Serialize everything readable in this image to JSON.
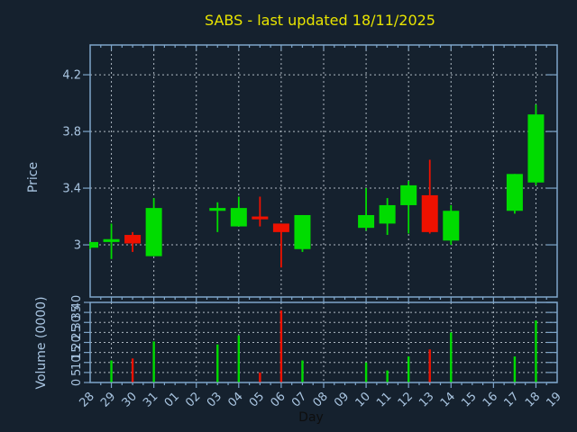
{
  "title": {
    "text": "SABS - last updated 18/11/2025"
  },
  "axes": {
    "price_label": "Price",
    "volume_label": "Volume (0000)",
    "day_label": "Day"
  },
  "colors": {
    "background": "#15212e",
    "title": "#e8e400",
    "tick_label": "#a9c5e1",
    "axis_label": "#a9c5e1",
    "day_axis_label": "#0e0e0e",
    "spine": "#7ea6ca",
    "gridline": "#c9d3dc",
    "candle_up": "#00dc00",
    "candle_down": "#ee1100"
  },
  "chart_data": {
    "type": "candlestick",
    "title": "SABS - last updated 18/11/2025",
    "xlabel": "Day",
    "ylabel_price": "Price",
    "ylabel_volume": "Volume (0000)",
    "grid": "dashed, every other day vertically; at labeled ticks horizontally",
    "x_categories": [
      "28",
      "29",
      "30",
      "31",
      "01",
      "02",
      "03",
      "04",
      "05",
      "06",
      "07",
      "08",
      "09",
      "10",
      "11",
      "12",
      "13",
      "14",
      "15",
      "16",
      "17",
      "18",
      "19"
    ],
    "x_gridlines": [
      "29",
      "31",
      "02",
      "04",
      "06",
      "08",
      "10",
      "12",
      "14",
      "16",
      "18"
    ],
    "price_axis": {
      "range": [
        2.632,
        4.41
      ],
      "ticks": [
        {
          "value": 3.0,
          "label": "3"
        },
        {
          "value": 3.4,
          "label": "3.4"
        },
        {
          "value": 3.8,
          "label": "3.8"
        },
        {
          "value": 4.2,
          "label": "4.2"
        }
      ]
    },
    "volume_axis": {
      "range": [
        0,
        40
      ],
      "ticks": [
        0,
        5,
        10,
        15,
        20,
        25,
        30,
        35,
        40
      ]
    },
    "candles": [
      {
        "day": "28",
        "open": 2.98,
        "high": 3.02,
        "low": 2.97,
        "close": 3.02,
        "volume": 0
      },
      {
        "day": "29",
        "open": 3.02,
        "high": 3.15,
        "low": 2.9,
        "close": 3.04,
        "volume": 11
      },
      {
        "day": "30",
        "open": 3.07,
        "high": 3.09,
        "low": 2.95,
        "close": 3.01,
        "volume": 12
      },
      {
        "day": "31",
        "open": 2.92,
        "high": 3.33,
        "low": 2.92,
        "close": 3.26,
        "volume": 20.5
      },
      {
        "day": "03",
        "open": 3.24,
        "high": 3.3,
        "low": 3.09,
        "close": 3.26,
        "volume": 19
      },
      {
        "day": "04",
        "open": 3.13,
        "high": 3.34,
        "low": 3.13,
        "close": 3.26,
        "volume": 23.5
      },
      {
        "day": "05",
        "open": 3.2,
        "high": 3.34,
        "low": 3.13,
        "close": 3.18,
        "volume": 5
      },
      {
        "day": "06",
        "open": 3.15,
        "high": 3.15,
        "low": 2.84,
        "close": 3.09,
        "volume": 36
      },
      {
        "day": "07",
        "open": 2.97,
        "high": 3.21,
        "low": 2.95,
        "close": 3.21,
        "volume": 11
      },
      {
        "day": "10",
        "open": 3.12,
        "high": 3.4,
        "low": 3.1,
        "close": 3.21,
        "volume": 10
      },
      {
        "day": "11",
        "open": 3.15,
        "high": 3.33,
        "low": 3.07,
        "close": 3.28,
        "volume": 6
      },
      {
        "day": "12",
        "open": 3.28,
        "high": 3.45,
        "low": 3.08,
        "close": 3.42,
        "volume": 13
      },
      {
        "day": "13",
        "open": 3.35,
        "high": 3.6,
        "low": 3.08,
        "close": 3.09,
        "volume": 16.5
      },
      {
        "day": "14",
        "open": 3.03,
        "high": 3.28,
        "low": 3.0,
        "close": 3.24,
        "volume": 25
      },
      {
        "day": "17",
        "open": 3.24,
        "high": 3.5,
        "low": 3.22,
        "close": 3.5,
        "volume": 13
      },
      {
        "day": "18",
        "open": 3.44,
        "high": 3.99,
        "low": 3.42,
        "close": 3.92,
        "volume": 31
      }
    ]
  }
}
